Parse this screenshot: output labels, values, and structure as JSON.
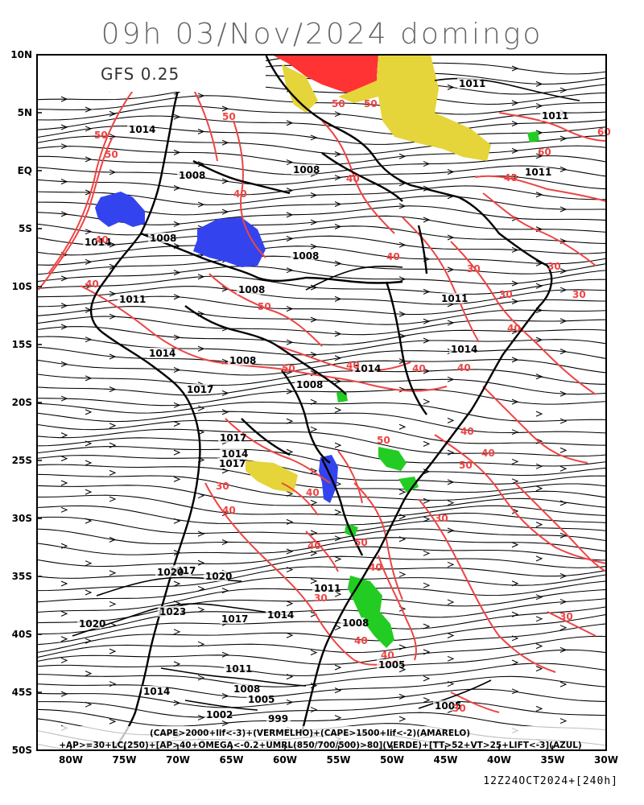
{
  "title": "09h 03/Nov/2024 domingo",
  "model_label": "GFS 0.25",
  "run_label": "12Z24OCT2024+[240h]",
  "legend": {
    "line1": "(CAPE>2000+lif<-3)+(VERMELHO)+(CAPE>1500+lif<-2)(AMARELO)",
    "line2": "+AP>=30+LC(250)+[AP>40+OMEGA<-0.2+UMRL(850/700/500)>80](VERDE)+[TT>52+VT>25+LIFT<-3](AZUL)"
  },
  "axes": {
    "lat_labels": [
      "10N",
      "5N",
      "EQ",
      "5S",
      "10S",
      "15S",
      "20S",
      "25S",
      "30S",
      "35S",
      "40S",
      "45S",
      "50S"
    ],
    "lon_labels": [
      "80W",
      "75W",
      "70W",
      "65W",
      "60W",
      "55W",
      "50W",
      "45W",
      "40W",
      "35W",
      "30W"
    ]
  },
  "colors": {
    "cape_strong": "#ff3333",
    "cape_moderate": "#e5d43a",
    "humidity": "#22cc22",
    "instability": "#3344ee",
    "contour": "#ee4444",
    "coast": "#000000",
    "streamline": "#000000"
  },
  "pressure_labels": [
    "1011",
    "1011",
    "1011",
    "1014",
    "1008",
    "1008",
    "1008",
    "1008",
    "1014",
    "1011",
    "1008",
    "1014",
    "1017",
    "1017",
    "1014",
    "1017",
    "1008",
    "1011",
    "1014",
    "1014",
    "1008",
    "1017",
    "1020",
    "1020",
    "1023",
    "1020",
    "1017",
    "1014",
    "1011",
    "1008",
    "1005",
    "1002",
    "999",
    "1011",
    "1008",
    "1005",
    "1005",
    "1014"
  ],
  "contour_labels": [
    "50",
    "50",
    "50",
    "50",
    "50",
    "40",
    "40",
    "40",
    "40",
    "40",
    "30",
    "30",
    "30",
    "30",
    "40",
    "50",
    "50",
    "40",
    "40",
    "40",
    "40",
    "50",
    "40",
    "30",
    "40",
    "30",
    "40",
    "50",
    "40",
    "40",
    "50",
    "40",
    "30",
    "40",
    "40",
    "30",
    "30",
    "60",
    "60"
  ]
}
